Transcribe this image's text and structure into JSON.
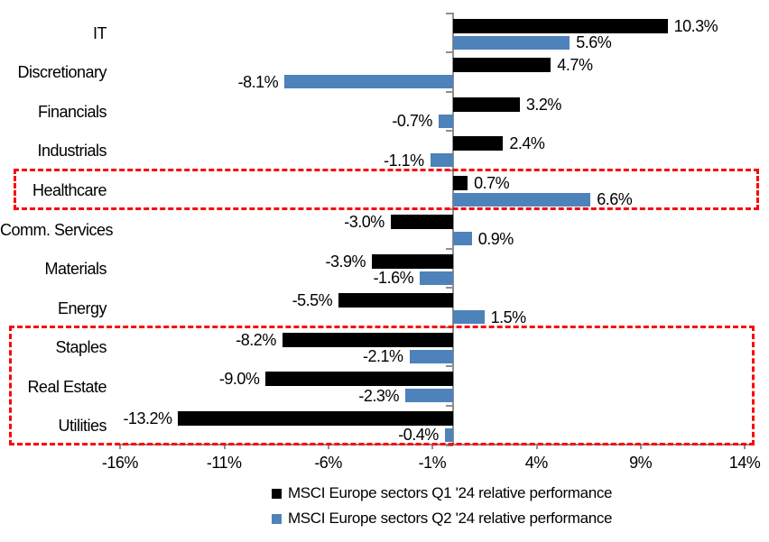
{
  "chart_data": {
    "type": "bar",
    "orientation": "horizontal",
    "categories": [
      "IT",
      "Discretionary",
      "Financials",
      "Industrials",
      "Healthcare",
      "Comm. Services",
      "Materials",
      "Energy",
      "Staples",
      "Real Estate",
      "Utilities"
    ],
    "series": [
      {
        "name": "MSCI Europe sectors Q1 '24 relative performance",
        "color": "#000000",
        "values": [
          10.3,
          4.7,
          3.2,
          2.4,
          0.7,
          -3.0,
          -3.9,
          -5.5,
          -8.2,
          -9.0,
          -13.2
        ]
      },
      {
        "name": "MSCI Europe sectors Q2 '24 relative performance",
        "color": "#4E82BA",
        "values": [
          5.6,
          -8.1,
          -0.7,
          -1.1,
          6.6,
          0.9,
          -1.6,
          1.5,
          -2.1,
          -2.3,
          -0.4
        ]
      }
    ],
    "value_label_suffix": "%",
    "x_tick_labels": [
      "-16%",
      "-11%",
      "-6%",
      "-1%",
      "4%",
      "9%",
      "14%"
    ],
    "x_tick_values": [
      -16,
      -11,
      -6,
      -1,
      4,
      9,
      14
    ],
    "xlim": [
      -16.2,
      14.2
    ],
    "grid": false,
    "legend_position": "bottom-center",
    "highlights": [
      {
        "categories": [
          "Healthcare"
        ],
        "style": "red-dashed-box"
      },
      {
        "categories": [
          "Staples",
          "Real Estate",
          "Utilities"
        ],
        "style": "red-dashed-box"
      }
    ],
    "colors": {
      "series_q1": "#000000",
      "series_q2": "#4E82BA",
      "highlight_box": "#FB0505",
      "axis": "#8F8F8F",
      "text": "#000000",
      "background": "#FFFFFF"
    }
  }
}
